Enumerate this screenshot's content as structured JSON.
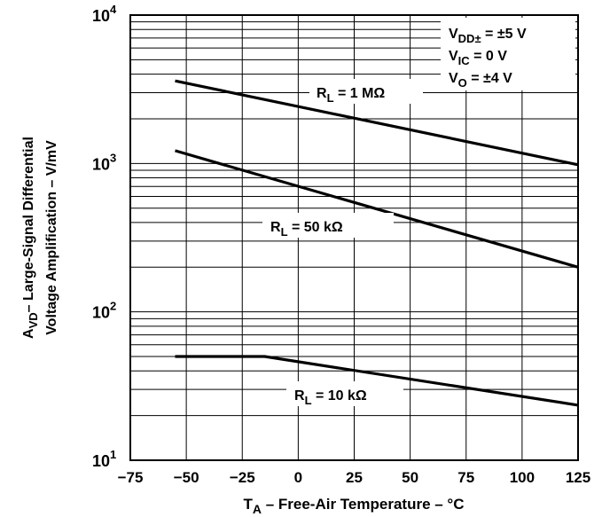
{
  "chart_data": {
    "type": "line",
    "title": "",
    "xlabel": {
      "main": "T",
      "sub": "A",
      "rest": " – Free-Air Temperature – °C"
    },
    "ylabel": {
      "line1": {
        "main": "A",
        "sub": "VD",
        "rest": "– Large-Signal Differential"
      },
      "line2": "Voltage Amplification – V/mV"
    },
    "x_ticks": [
      -75,
      -50,
      -25,
      0,
      25,
      50,
      75,
      100,
      125
    ],
    "xlim": [
      -75,
      125
    ],
    "y_scale": "log",
    "ylim": [
      10,
      10000
    ],
    "y_ticks": [
      {
        "value": 10,
        "base": "10",
        "exp": "1"
      },
      {
        "value": 100,
        "base": "10",
        "exp": "2"
      },
      {
        "value": 1000,
        "base": "10",
        "exp": "3"
      },
      {
        "value": 10000,
        "base": "10",
        "exp": "4"
      }
    ],
    "grid": "vertical at x ticks; horizontal at log minor decades",
    "series": [
      {
        "name": {
          "main": "R",
          "sub": "L",
          "rest": " = 1 MΩ"
        },
        "x": [
          -55,
          125
        ],
        "y": [
          3600,
          980
        ]
      },
      {
        "name": {
          "main": "R",
          "sub": "L",
          "rest": " = 50 kΩ"
        },
        "x": [
          -55,
          125
        ],
        "y": [
          1220,
          200
        ]
      },
      {
        "name": {
          "main": "R",
          "sub": "L",
          "rest": " = 10 kΩ"
        },
        "x": [
          -55,
          -15,
          125
        ],
        "y": [
          50,
          50,
          23.5
        ]
      }
    ],
    "conditions": [
      {
        "main": "V",
        "sub": "DD±",
        "rest": " = ±5 V"
      },
      {
        "main": "V",
        "sub": "IC",
        "rest": " = 0 V"
      },
      {
        "main": "V",
        "sub": "O",
        "rest": " = ±4 V"
      }
    ]
  }
}
